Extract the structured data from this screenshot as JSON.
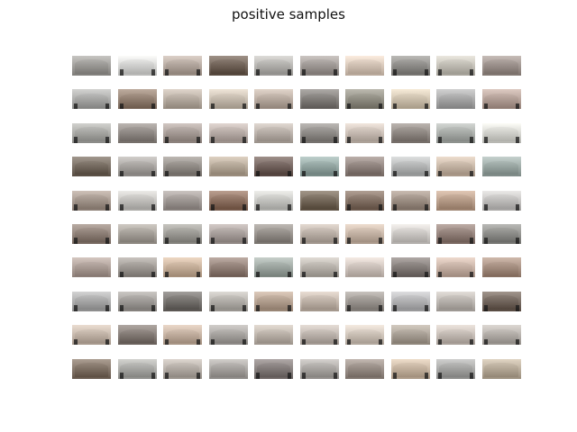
{
  "figure": {
    "title": "positive samples",
    "rows": 10,
    "columns": 10,
    "tile_colors": [
      [
        "#9a9894",
        "#d8d8d6",
        "#b3a59b",
        "#6a5a4e",
        "#b4b2ae",
        "#9f9894",
        "#d8c6b6",
        "#8c8a86",
        "#c4c0b6",
        "#9a8e88"
      ],
      [
        "#a8a8a6",
        "#8f7a6a",
        "#b7ab9f",
        "#c9bdae",
        "#b9aa9e",
        "#7c7874",
        "#8d8a7e",
        "#d2c4ae",
        "#a6a6a6",
        "#b49e94"
      ],
      [
        "#a6a6a2",
        "#8c8580",
        "#a69a94",
        "#b9aca6",
        "#b8aea6",
        "#8c8884",
        "#cbbeb4",
        "#8c847e",
        "#a8aca8",
        "#d8d8d2"
      ],
      [
        "#6e6256",
        "#a6a29e",
        "#8e8882",
        "#b5a694",
        "#6a5852",
        "#8fa4a0",
        "#8c7e78",
        "#b4b6b6",
        "#c7b4a2",
        "#98a6a2"
      ],
      [
        "#a29388",
        "#c6c4c0",
        "#9e9692",
        "#8a6a58",
        "#c8c8c4",
        "#6e6050",
        "#7e6a5c",
        "#9c8c80",
        "#b89a84",
        "#c4c2c0"
      ],
      [
        "#8a7a70",
        "#a49e96",
        "#9a9892",
        "#a89e9a",
        "#908a84",
        "#bcb0a6",
        "#c8b4a4",
        "#d0ccc8",
        "#8e7a72",
        "#8a8a86"
      ],
      [
        "#aa9a92",
        "#9c9690",
        "#c8ae96",
        "#8e7a70",
        "#9aa49e",
        "#b8b2aa",
        "#d0c4bc",
        "#7e7672",
        "#c8b0a2",
        "#a48a7a"
      ],
      [
        "#a8a8a8",
        "#9e9a96",
        "#6e6a66",
        "#b4b0aa",
        "#b49e8c",
        "#c2b4a8",
        "#9a948e",
        "#b4b4b6",
        "#bab4ae",
        "#6c5e54"
      ],
      [
        "#c4b4a6",
        "#7e746e",
        "#c4ae9c",
        "#a6a29e",
        "#bcb2a8",
        "#beb4ac",
        "#d0c4b8",
        "#a89e92",
        "#c6bcb4",
        "#b4aea8"
      ],
      [
        "#7a6a5c",
        "#a8a8a4",
        "#b4aca4",
        "#a6a29e",
        "#7e7674",
        "#aaa6a2",
        "#948880",
        "#c8b49e",
        "#a4a4a2",
        "#b8aa96"
      ]
    ]
  }
}
